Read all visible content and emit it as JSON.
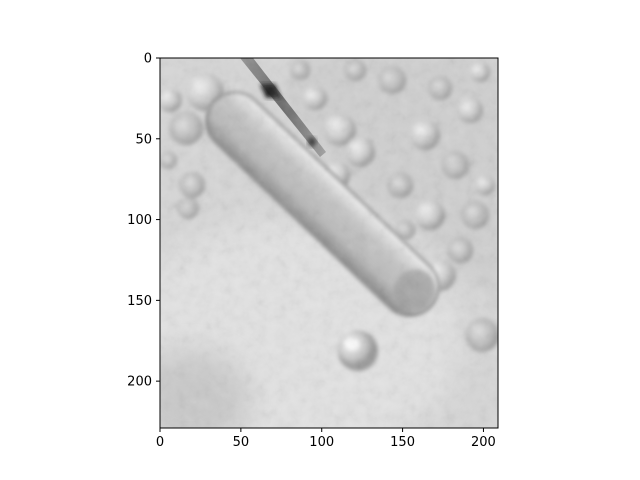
{
  "figure": {
    "background": "#ffffff",
    "image": {
      "subject": "grayscale differential-interference-contrast microscopy image: an elongated rod-shaped cell lying diagonally, a micropipette touching its upper end, a cluster of round cells in the upper right, and a single round cell below the rod",
      "palette": {
        "background": "#d8d8d8",
        "highlight": "#f2f2f2",
        "shadow": "#8a8a8a",
        "pipette": "#555555",
        "pipette_tip": "#1a1a1a"
      }
    },
    "x_axis": {
      "ticks": [
        0,
        50,
        100,
        150,
        200
      ],
      "tick_labels": [
        "0",
        "50",
        "100",
        "150",
        "200"
      ],
      "range": [
        0,
        209
      ]
    },
    "y_axis": {
      "ticks": [
        0,
        50,
        100,
        150,
        200
      ],
      "tick_labels": [
        "0",
        "50",
        "100",
        "150",
        "200"
      ],
      "range": [
        0,
        229
      ],
      "inverted": true
    }
  }
}
